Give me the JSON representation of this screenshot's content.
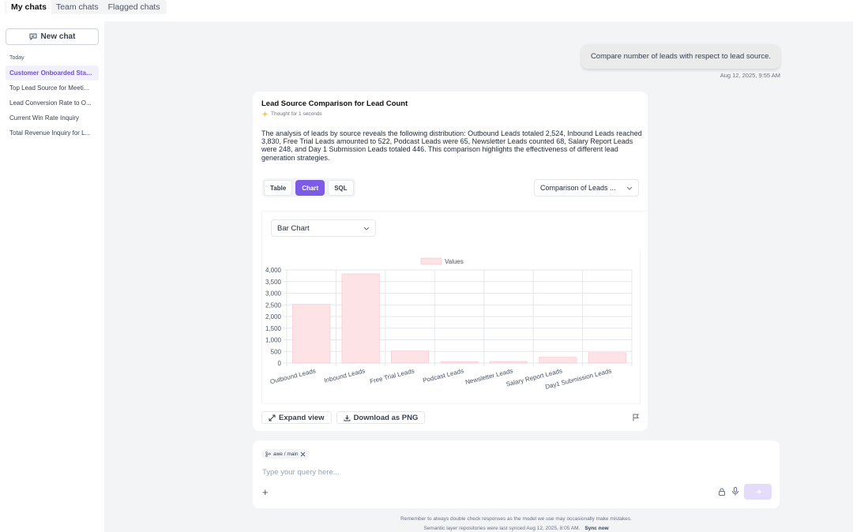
{
  "tabs": [
    "My chats",
    "Team chats",
    "Flagged chats"
  ],
  "sidebar": {
    "new_chat_label": "New chat",
    "section_label": "Today",
    "items": [
      "Customer Onboarded Stag...",
      "Top Lead Source for Meeti...",
      "Lead Conversion Rate to O...",
      "Current Win Rate Inquiry",
      "Total Revenue Inquiry for L..."
    ]
  },
  "user_message": {
    "text": "Compare number of leads with respect to lead source.",
    "time": "Aug 12, 2025, 9:55 AM"
  },
  "answer": {
    "title": "Lead Source Comparison for Lead Count",
    "thought": "Thought for 1 seconds",
    "summary": "The analysis of leads by source reveals the following distribution: Outbound Leads totaled 2,524, Inbound Leads reached 3,830, Free Trial Leads amounted to 522, Podcast Leads were 65, Newsletter Leads counted 68, Salary Report Leads were 248, and Day 1 Submission Leads totaled 446. This comparison highlights the effectiveness of different lead generation strategies.",
    "view_tabs": [
      "Table",
      "Chart",
      "SQL"
    ],
    "active_view": "Chart",
    "comparison_select": "Comparison of Leads ...",
    "chart_type_select": "Bar Chart",
    "expand_label": "Expand view",
    "download_label": "Download as PNG"
  },
  "chart_data": {
    "type": "bar",
    "categories": [
      "Outbound Leads",
      "Inbound Leads",
      "Free Trial Leads",
      "Podcast Leads",
      "Newsletter Leads",
      "Salary Report Leads",
      "Day1 Submission Leads"
    ],
    "series": [
      {
        "name": "Values",
        "values": [
          2524,
          3830,
          522,
          65,
          68,
          248,
          446
        ]
      }
    ],
    "yticks": [
      "0",
      "500",
      "1,000",
      "1,500",
      "2,000",
      "2,500",
      "3,000",
      "3,500",
      "4,000"
    ],
    "ylim": [
      0,
      4000
    ],
    "grid": true,
    "legend": "top",
    "bar_color": "#fde2e6",
    "bar_border": "#fbc4cc"
  },
  "composer": {
    "chip_label": "awe / main",
    "placeholder": "Type your query here..."
  },
  "footer": {
    "disclaimer": "Remember to always double check responses as the model we use may occasionally make mistakes.",
    "synced": "Semantic layer repositories were last synced Aug 12, 2025, 8:05 AM.",
    "sync_now": "Sync now"
  }
}
